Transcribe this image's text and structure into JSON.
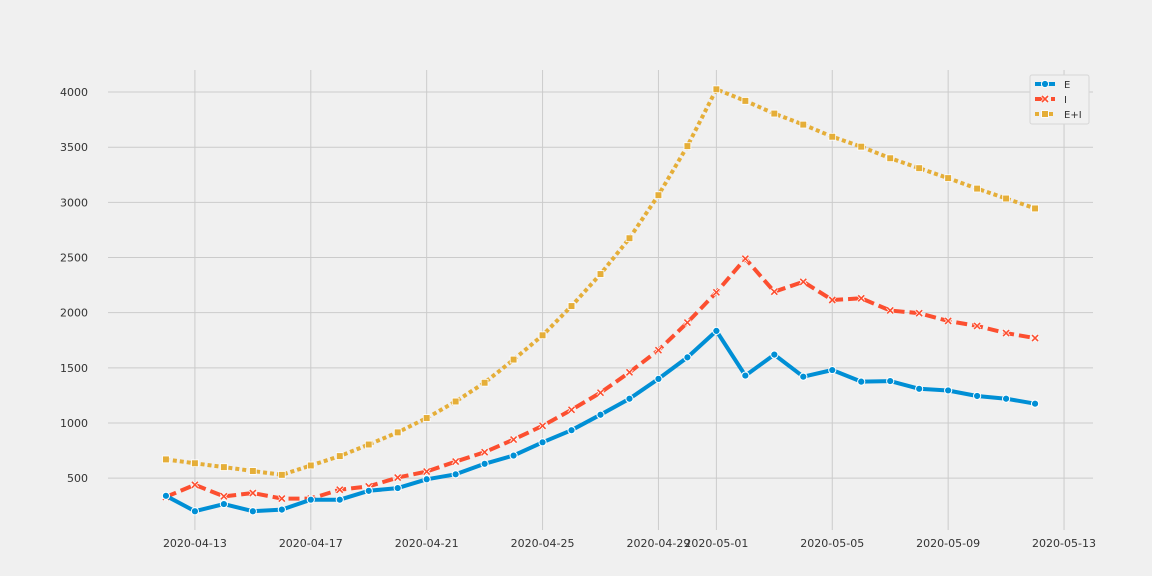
{
  "chart_data": {
    "type": "line",
    "title": "",
    "xlabel": "",
    "ylabel": "",
    "x": [
      "2020-04-12",
      "2020-04-13",
      "2020-04-14",
      "2020-04-15",
      "2020-04-16",
      "2020-04-17",
      "2020-04-18",
      "2020-04-19",
      "2020-04-20",
      "2020-04-21",
      "2020-04-22",
      "2020-04-23",
      "2020-04-24",
      "2020-04-25",
      "2020-04-26",
      "2020-04-27",
      "2020-04-28",
      "2020-04-29",
      "2020-04-30",
      "2020-05-01",
      "2020-05-02",
      "2020-05-03",
      "2020-05-04",
      "2020-05-05",
      "2020-05-06",
      "2020-05-07",
      "2020-05-08",
      "2020-05-09",
      "2020-05-10",
      "2020-05-11",
      "2020-05-12"
    ],
    "xlim": [
      "2020-04-10",
      "2020-05-14"
    ],
    "ylim": [
      30,
      4200
    ],
    "x_ticks": [
      "2020-04-13",
      "2020-04-17",
      "2020-04-21",
      "2020-04-25",
      "2020-04-29",
      "2020-05-01",
      "2020-05-05",
      "2020-05-09",
      "2020-05-13"
    ],
    "y_ticks": [
      500,
      1000,
      1500,
      2000,
      2500,
      3000,
      3500,
      4000
    ],
    "grid": true,
    "legend_position": "top-right",
    "series": [
      {
        "name": "E",
        "color": "#008fd5",
        "style": "solid",
        "marker": "circle",
        "values": [
          340,
          200,
          265,
          200,
          215,
          305,
          305,
          385,
          410,
          490,
          535,
          630,
          705,
          825,
          935,
          1075,
          1220,
          1400,
          1595,
          1835,
          1430,
          1620,
          1420,
          1480,
          1375,
          1380,
          1310,
          1295,
          1245,
          1220,
          1175
        ]
      },
      {
        "name": "I",
        "color": "#fc4f30",
        "style": "dashed",
        "marker": "x",
        "values": [
          330,
          440,
          335,
          365,
          315,
          315,
          395,
          425,
          505,
          560,
          650,
          735,
          850,
          975,
          1120,
          1275,
          1460,
          1660,
          1910,
          2185,
          2490,
          2190,
          2280,
          2115,
          2130,
          2020,
          1995,
          1925,
          1880,
          1815,
          1770
        ]
      },
      {
        "name": "E+I",
        "color": "#e5ae38",
        "style": "dotted",
        "marker": "square",
        "values": [
          670,
          635,
          600,
          565,
          530,
          615,
          700,
          805,
          915,
          1045,
          1195,
          1365,
          1575,
          1795,
          2060,
          2350,
          2675,
          3065,
          3510,
          4025,
          3920,
          3805,
          3705,
          3595,
          3505,
          3400,
          3310,
          3220,
          3125,
          3035,
          2945
        ]
      }
    ]
  }
}
